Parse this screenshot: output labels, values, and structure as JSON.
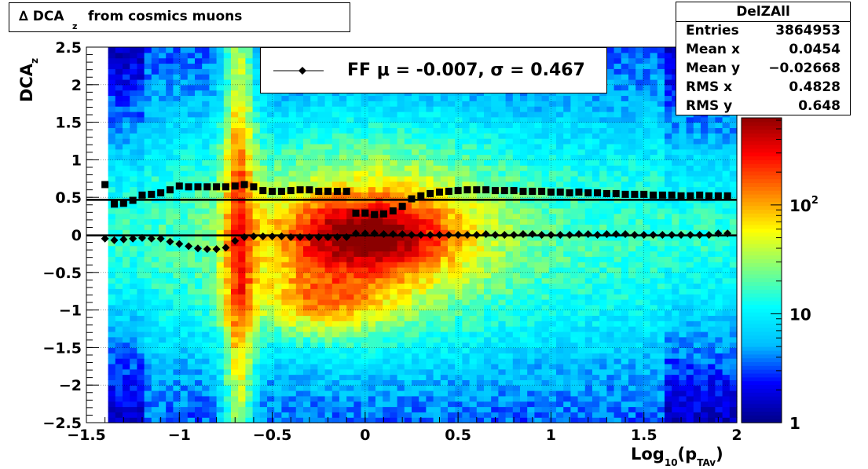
{
  "chart_data": {
    "type": "heatmap",
    "title": "Δ DCA_z  from cosmics muons",
    "title_parts": {
      "prefix": "∆ DCA",
      "subscript": "z",
      "suffix": "from cosmics muons"
    },
    "xlabel": "Log_10(p_TAv)",
    "xlabel_parts": {
      "main": "Log",
      "sub": "10",
      "mid": "(p",
      "sub2": "TAv",
      "end": ")"
    },
    "ylabel": "DCA_z",
    "ylabel_parts": {
      "main": "DCA",
      "sub": "z"
    },
    "xlim": [
      -1.5,
      2
    ],
    "ylim": [
      -2.5,
      2.5
    ],
    "x_ticks": [
      "−1.5",
      "−1",
      "−0.5",
      "0",
      "0.5",
      "1",
      "1.5",
      "2"
    ],
    "x_tick_values": [
      -1.5,
      -1,
      -0.5,
      0,
      0.5,
      1,
      1.5,
      2
    ],
    "y_ticks": [
      "−2.5",
      "−2",
      "−1.5",
      "−1",
      "−0.5",
      "0",
      "0.5",
      "1",
      "1.5",
      "2",
      "2.5"
    ],
    "y_tick_values": [
      -2.5,
      -2,
      -1.5,
      -1,
      -0.5,
      0,
      0.5,
      1,
      1.5,
      2,
      2.5
    ],
    "grid": true,
    "z_scale": "log",
    "z_ticks": [
      "1",
      "10",
      "10^2"
    ],
    "z_tick_values": [
      1,
      10,
      100
    ],
    "colormap": [
      "#00008b",
      "#0000ff",
      "#00bfff",
      "#00ffff",
      "#7fff7f",
      "#ffff00",
      "#ff7f00",
      "#ff0000",
      "#8b0000"
    ],
    "stats": {
      "name": "DelZAll",
      "rows": [
        {
          "label": "Entries",
          "value": "3864953"
        },
        {
          "label": "Mean x",
          "value": "0.0454"
        },
        {
          "label": "Mean y",
          "value": "−0.02668"
        },
        {
          "label": "RMS x",
          "value": "0.4828"
        },
        {
          "label": "RMS y",
          "value": "0.648"
        }
      ]
    },
    "legend": {
      "text": "FF μ = -0.007, σ =   0.467",
      "position": "top-center"
    },
    "fit_lines": [
      {
        "name": "mean",
        "y": -0.007
      },
      {
        "name": "sigma",
        "y": 0.467
      }
    ],
    "series": [
      {
        "name": "sigma_profile",
        "marker": "square",
        "x": [
          -1.4,
          -1.35,
          -1.3,
          -1.25,
          -1.2,
          -1.15,
          -1.1,
          -1.05,
          -1.0,
          -0.95,
          -0.9,
          -0.85,
          -0.8,
          -0.75,
          -0.7,
          -0.65,
          -0.6,
          -0.55,
          -0.5,
          -0.45,
          -0.4,
          -0.35,
          -0.3,
          -0.25,
          -0.2,
          -0.15,
          -0.1,
          -0.05,
          0.0,
          0.05,
          0.1,
          0.15,
          0.2,
          0.25,
          0.3,
          0.35,
          0.4,
          0.45,
          0.5,
          0.55,
          0.6,
          0.65,
          0.7,
          0.75,
          0.8,
          0.85,
          0.9,
          0.95,
          1.0,
          1.05,
          1.1,
          1.15,
          1.2,
          1.25,
          1.3,
          1.35,
          1.4,
          1.45,
          1.5,
          1.55,
          1.6,
          1.65,
          1.7,
          1.75,
          1.8,
          1.85,
          1.9,
          1.95
        ],
        "y": [
          0.67,
          0.41,
          0.42,
          0.46,
          0.53,
          0.54,
          0.56,
          0.6,
          0.65,
          0.64,
          0.64,
          0.64,
          0.64,
          0.64,
          0.65,
          0.67,
          0.64,
          0.59,
          0.58,
          0.58,
          0.59,
          0.6,
          0.6,
          0.58,
          0.58,
          0.58,
          0.58,
          0.29,
          0.29,
          0.27,
          0.28,
          0.32,
          0.38,
          0.48,
          0.52,
          0.55,
          0.57,
          0.58,
          0.59,
          0.6,
          0.6,
          0.6,
          0.59,
          0.59,
          0.59,
          0.58,
          0.58,
          0.58,
          0.57,
          0.57,
          0.56,
          0.57,
          0.56,
          0.56,
          0.55,
          0.55,
          0.54,
          0.54,
          0.54,
          0.53,
          0.53,
          0.53,
          0.52,
          0.52,
          0.53,
          0.52,
          0.52,
          0.52
        ]
      },
      {
        "name": "mean_profile",
        "marker": "diamond",
        "x": [
          -1.4,
          -1.35,
          -1.3,
          -1.25,
          -1.2,
          -1.15,
          -1.1,
          -1.05,
          -1.0,
          -0.95,
          -0.9,
          -0.85,
          -0.8,
          -0.75,
          -0.7,
          -0.65,
          -0.6,
          -0.55,
          -0.5,
          -0.45,
          -0.4,
          -0.35,
          -0.3,
          -0.25,
          -0.2,
          -0.15,
          -0.1,
          -0.05,
          0.0,
          0.05,
          0.1,
          0.15,
          0.2,
          0.25,
          0.3,
          0.35,
          0.4,
          0.45,
          0.5,
          0.55,
          0.6,
          0.65,
          0.7,
          0.75,
          0.8,
          0.85,
          0.9,
          0.95,
          1.0,
          1.05,
          1.1,
          1.15,
          1.2,
          1.25,
          1.3,
          1.35,
          1.4,
          1.45,
          1.5,
          1.55,
          1.6,
          1.65,
          1.7,
          1.75,
          1.8,
          1.85,
          1.9,
          1.95
        ],
        "y": [
          -0.05,
          -0.07,
          -0.06,
          -0.05,
          -0.04,
          -0.05,
          -0.05,
          -0.09,
          -0.12,
          -0.15,
          -0.18,
          -0.19,
          -0.19,
          -0.17,
          -0.08,
          -0.03,
          -0.02,
          -0.02,
          -0.02,
          -0.02,
          -0.03,
          -0.03,
          -0.03,
          -0.03,
          -0.03,
          -0.03,
          -0.03,
          0.02,
          0.02,
          0.02,
          0.01,
          0.01,
          0.01,
          0.0,
          0.0,
          0.0,
          0.0,
          0.0,
          0.0,
          0.0,
          0.0,
          0.01,
          0.0,
          0.0,
          0.0,
          0.01,
          0.01,
          0.0,
          0.0,
          0.0,
          0.0,
          0.01,
          0.01,
          0.0,
          0.01,
          0.01,
          0.01,
          0.0,
          0.0,
          0.0,
          0.0,
          0.0,
          0.0,
          0.0,
          0.0,
          0.0,
          0.02,
          0.02
        ]
      }
    ]
  }
}
